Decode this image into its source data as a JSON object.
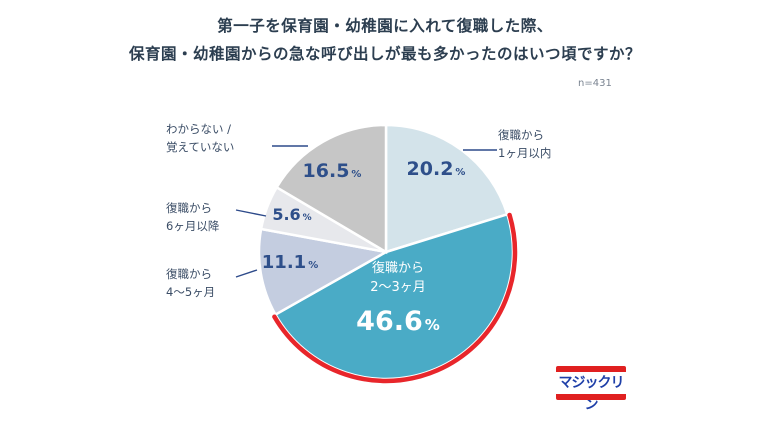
{
  "title_line1": "第一子を保育園・幼稚園に入れて復職した際、",
  "title_line2": "保育園・幼稚園からの急な呼び出しが最も多かったのはいつ頃ですか？",
  "sample_size": "n=431",
  "logo_text": "マジックリン",
  "colors": {
    "highlight_ring": "#e8262b",
    "leader_line": "#2d4a8a",
    "percent_text": "#2e4f8a",
    "percent_text_highlight": "#ffffff"
  },
  "chart_data": {
    "type": "pie",
    "title": "第一子を保育園・幼稚園に入れて復職した際、保育園・幼稚園からの急な呼び出しが最も多かったのはいつ頃ですか？",
    "start": "12 o'clock",
    "direction": "clockwise",
    "highlighted": "復職から2〜3ヶ月",
    "slices": [
      {
        "label": "復職から1ヶ月以内",
        "label_lines": [
          "復職から",
          "1ヶ月以内"
        ],
        "pct_value": "20.2",
        "value": 20.2,
        "color": "#d3e3ea"
      },
      {
        "label": "復職から2〜3ヶ月",
        "label_lines": [
          "復職から",
          "2〜3ヶ月"
        ],
        "pct_value": "46.6",
        "value": 46.6,
        "color": "#4aabc6"
      },
      {
        "label": "復職から4〜5ヶ月",
        "label_lines": [
          "復職から",
          "4〜5ヶ月"
        ],
        "pct_value": "11.1",
        "value": 11.1,
        "color": "#c4cde0"
      },
      {
        "label": "復職から6ヶ月以降",
        "label_lines": [
          "復職から",
          "6ヶ月以降"
        ],
        "pct_value": "5.6",
        "value": 5.6,
        "color": "#e7e8ec"
      },
      {
        "label": "わからない / 覚えていない",
        "label_lines": [
          "わからない /",
          "覚えていない"
        ],
        "pct_value": "16.5",
        "value": 16.5,
        "color": "#c6c6c6"
      }
    ],
    "percent_suffix": "%"
  }
}
